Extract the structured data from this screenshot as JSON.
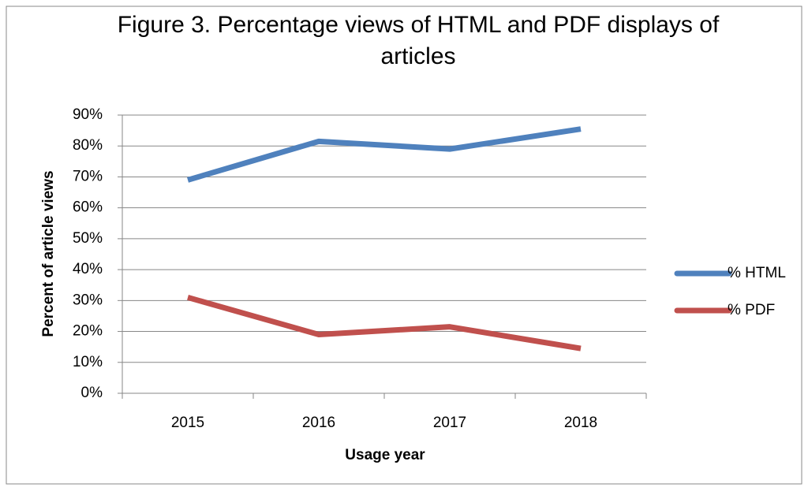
{
  "chart_data": {
    "type": "line",
    "title": "Figure 3. Percentage views of HTML and PDF displays of articles",
    "x_label": "Usage year",
    "y_label": "Percent of article views",
    "categories": [
      "2015",
      "2016",
      "2017",
      "2018"
    ],
    "series": [
      {
        "name": "% HTML",
        "color": "#4f81bd",
        "values": [
          69,
          81.5,
          79,
          85.5
        ]
      },
      {
        "name": "% PDF",
        "color": "#c0504d",
        "values": [
          31,
          19,
          21.5,
          14.5
        ]
      }
    ],
    "ylim": [
      0,
      90
    ],
    "yticks": [
      {
        "value": 0,
        "label": "0%"
      },
      {
        "value": 10,
        "label": "10%"
      },
      {
        "value": 20,
        "label": "20%"
      },
      {
        "value": 30,
        "label": "30%"
      },
      {
        "value": 40,
        "label": "40%"
      },
      {
        "value": 50,
        "label": "50%"
      },
      {
        "value": 60,
        "label": "60%"
      },
      {
        "value": 70,
        "label": "70%"
      },
      {
        "value": 80,
        "label": "80%"
      },
      {
        "value": 90,
        "label": "90%"
      }
    ],
    "grid": true,
    "legend": "right"
  }
}
